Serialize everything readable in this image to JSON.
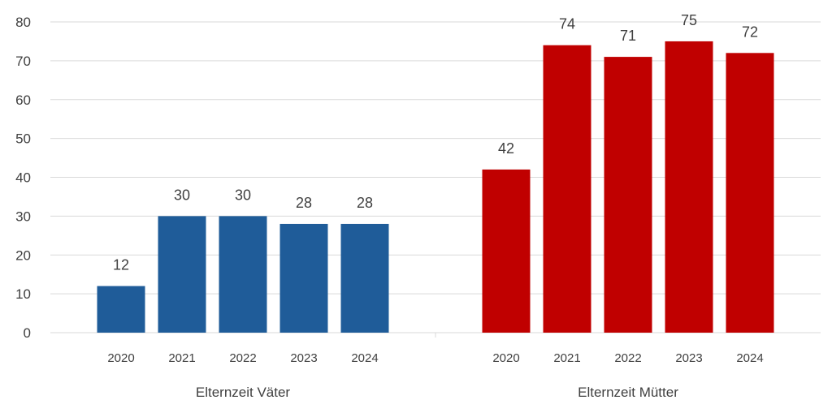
{
  "chart_data": {
    "type": "bar",
    "title": "",
    "xlabel": "",
    "ylabel": "",
    "ylim": [
      0,
      80
    ],
    "yticks": [
      0,
      10,
      20,
      30,
      40,
      50,
      60,
      70,
      80
    ],
    "grid": true,
    "legend": "none",
    "groups": [
      {
        "label": "Elternzeit Väter",
        "color": "#1f5c99",
        "categories": [
          "2020",
          "2021",
          "2022",
          "2023",
          "2024"
        ],
        "values": [
          12,
          30,
          30,
          28,
          28
        ]
      },
      {
        "label": "Elternzeit Mütter",
        "color": "#c00000",
        "categories": [
          "2020",
          "2021",
          "2022",
          "2023",
          "2024"
        ],
        "values": [
          42,
          74,
          71,
          75,
          72
        ]
      }
    ]
  }
}
